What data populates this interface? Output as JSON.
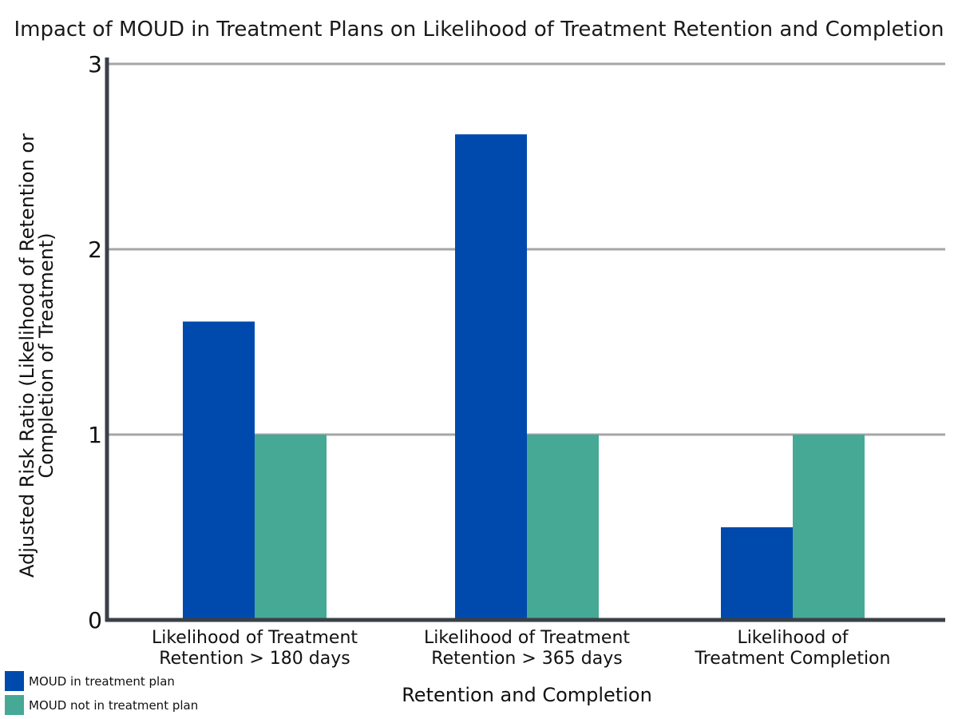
{
  "chart_data": {
    "type": "bar",
    "title": "Impact of MOUD in Treatment Plans on Likelihood of Treatment Retention and Completion",
    "xlabel": "Retention and Completion",
    "ylabel_lines": [
      "Adjusted Risk Ratio (Likelihood of Retention or",
      "Completion of Treatment)"
    ],
    "categories": [
      [
        "Likelihood of Treatment",
        "Retention > 180 days"
      ],
      [
        "Likelihood of Treatment",
        "Retention > 365 days"
      ],
      [
        "Likelihood of",
        "Treatment Completion"
      ]
    ],
    "series": [
      {
        "name": "MOUD in treatment plan",
        "values": [
          1.61,
          2.62,
          0.5
        ],
        "color": "#004aad"
      },
      {
        "name": "MOUD not in treatment plan",
        "values": [
          1.0,
          1.0,
          1.0
        ],
        "color": "#45a996"
      }
    ],
    "ylim": [
      0,
      3
    ],
    "yticks": [
      "0",
      "1",
      "2",
      "3"
    ],
    "grid": true,
    "legend_position": "bottom-left"
  }
}
